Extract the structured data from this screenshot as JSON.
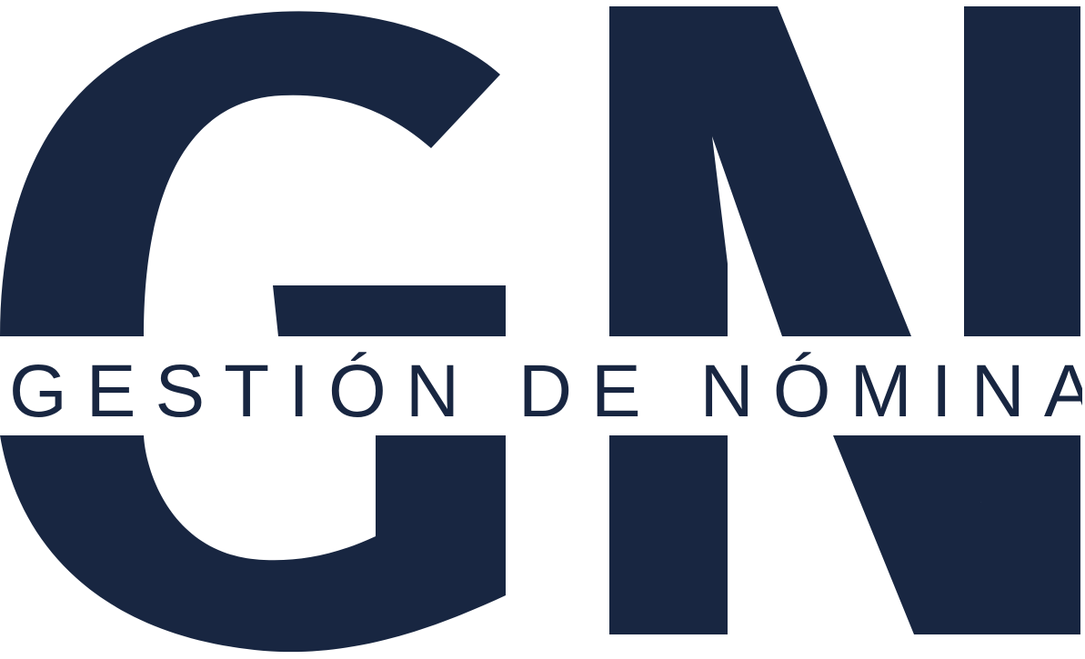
{
  "brand": {
    "monogram": "GN",
    "wordmark": "GESTIÓN DE NÓMINA",
    "color": "#182641",
    "background": "#ffffff"
  }
}
